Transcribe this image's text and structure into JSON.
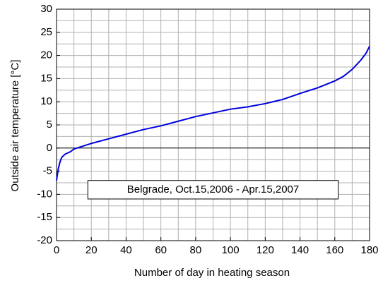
{
  "chart_data": {
    "type": "line",
    "y_label": "Outside air temperature   [°C]",
    "x_label": "Number of day in heating season",
    "annotation": "Belgrade, Oct.15,2006 - Apr.15,2007",
    "xlim": [
      0,
      180
    ],
    "xticks": [
      0,
      20,
      40,
      60,
      80,
      100,
      120,
      140,
      160,
      180
    ],
    "ylim": [
      -20,
      30
    ],
    "yticks": [
      -20,
      -15,
      -10,
      -5,
      0,
      5,
      10,
      15,
      20,
      25,
      30
    ],
    "grid": true,
    "series": [
      {
        "name": "Outside air temperature",
        "color": "#0000dd",
        "x": [
          0,
          1,
          2,
          3,
          5,
          8,
          10,
          20,
          30,
          40,
          50,
          60,
          70,
          80,
          90,
          100,
          110,
          120,
          130,
          140,
          150,
          160,
          165,
          170,
          175,
          178,
          180
        ],
        "values": [
          -7,
          -4.5,
          -3,
          -2,
          -1.3,
          -0.8,
          -0.2,
          1,
          2,
          3,
          4,
          4.8,
          5.8,
          6.8,
          7.6,
          8.4,
          8.9,
          9.6,
          10.5,
          11.8,
          13,
          14.5,
          15.5,
          17,
          19,
          20.5,
          22
        ]
      }
    ]
  }
}
